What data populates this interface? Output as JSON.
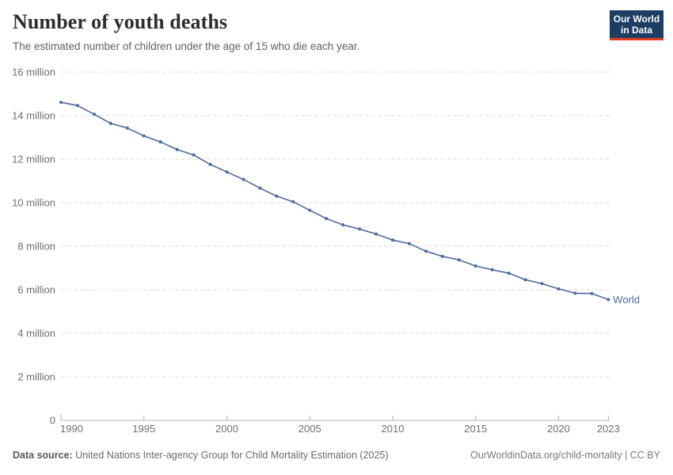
{
  "header": {
    "title": "Number of youth deaths",
    "subtitle": "The estimated number of children under the age of 15 who die each year.",
    "logo": {
      "line1": "Our World",
      "line2": "in Data"
    }
  },
  "chart_data": {
    "type": "line",
    "title": "Number of youth deaths",
    "subtitle": "The estimated number of children under the age of 15 who die each year.",
    "xlabel": "",
    "ylabel": "",
    "unit": "deaths per year",
    "xlim": [
      1990,
      2023
    ],
    "ylim": [
      0,
      16000000
    ],
    "ylim_millions": [
      0,
      16
    ],
    "grid": "horizontal-dashed",
    "legend_position": "end-of-line-label",
    "years": [
      1990,
      1991,
      1992,
      1993,
      1994,
      1995,
      1996,
      1997,
      1998,
      1999,
      2000,
      2001,
      2002,
      2003,
      2004,
      2005,
      2006,
      2007,
      2008,
      2009,
      2010,
      2011,
      2012,
      2013,
      2014,
      2015,
      2016,
      2017,
      2018,
      2019,
      2020,
      2021,
      2022,
      2023
    ],
    "series": [
      {
        "name": "World",
        "color": "#4c6a9c",
        "values_millions": [
          14.61,
          14.46,
          14.06,
          13.64,
          13.43,
          13.07,
          12.79,
          12.44,
          12.19,
          11.76,
          11.41,
          11.07,
          10.67,
          10.3,
          10.04,
          9.65,
          9.27,
          8.98,
          8.79,
          8.56,
          8.28,
          8.12,
          7.77,
          7.53,
          7.37,
          7.09,
          6.92,
          6.76,
          6.46,
          6.28,
          6.04,
          5.84,
          5.83,
          5.55
        ]
      }
    ],
    "yticks": [
      {
        "value": 0,
        "label": "0"
      },
      {
        "value": 2,
        "label": "2 million"
      },
      {
        "value": 4,
        "label": "4 million"
      },
      {
        "value": 6,
        "label": "6 million"
      },
      {
        "value": 8,
        "label": "8 million"
      },
      {
        "value": 10,
        "label": "10 million"
      },
      {
        "value": 12,
        "label": "12 million"
      },
      {
        "value": 14,
        "label": "14 million"
      },
      {
        "value": 16,
        "label": "16 million"
      }
    ],
    "xticks": [
      {
        "value": 1990,
        "label": "1990"
      },
      {
        "value": 1995,
        "label": "1995"
      },
      {
        "value": 2000,
        "label": "2000"
      },
      {
        "value": 2005,
        "label": "2005"
      },
      {
        "value": 2010,
        "label": "2010"
      },
      {
        "value": 2015,
        "label": "2015"
      },
      {
        "value": 2020,
        "label": "2020"
      },
      {
        "value": 2023,
        "label": "2023"
      }
    ]
  },
  "footer": {
    "datasource_label": "Data source:",
    "datasource_text": " United Nations Inter-agency Group for Child Mortality Estimation (2025)",
    "link_text": "OurWorldinData.org/child-mortality | CC BY"
  },
  "colors": {
    "line": "#4c6a9c",
    "logo_navy": "#1d3d63",
    "logo_red": "#dc3d22",
    "gridline": "#dcdcdc",
    "axis": "#b3b3b3",
    "tick_text": "#6e6e6e"
  }
}
